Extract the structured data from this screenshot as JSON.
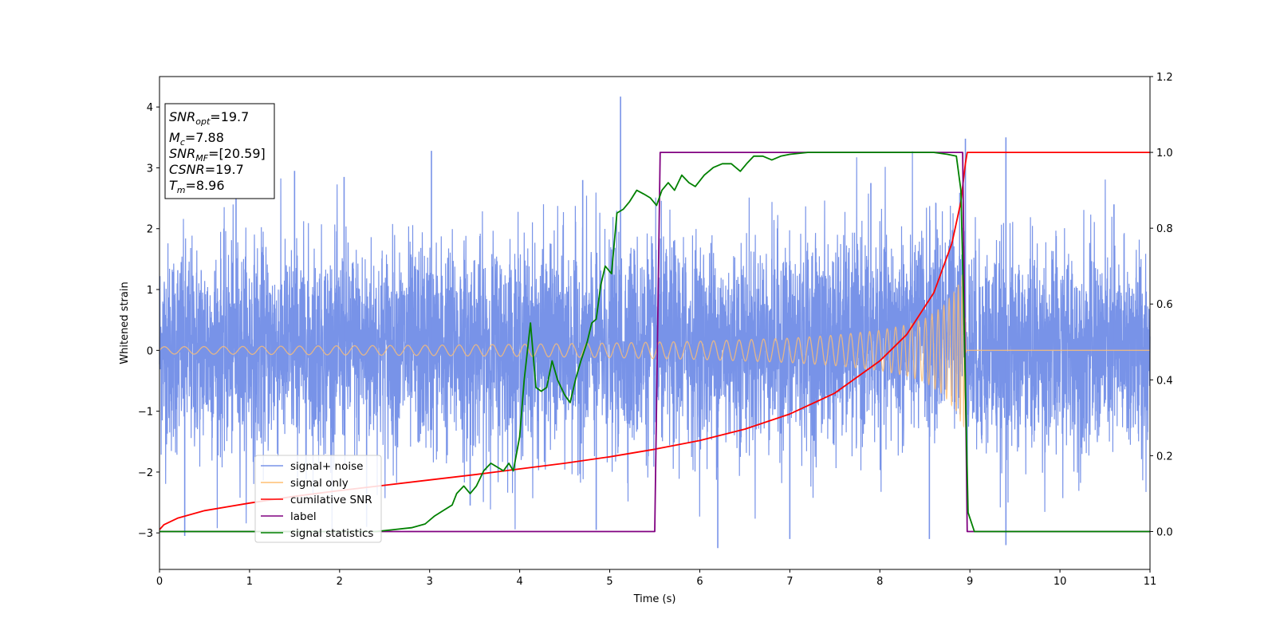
{
  "chart_data": {
    "type": "line",
    "xlabel": "Time (s)",
    "ylabel_left": "Whitened strain",
    "ylabel_right": "",
    "xlim": [
      0,
      11
    ],
    "ylim_left": [
      -3.6,
      4.5
    ],
    "ylim_right": [
      -0.1,
      1.2
    ],
    "x_ticks": [
      "0",
      "1",
      "2",
      "3",
      "4",
      "5",
      "6",
      "7",
      "8",
      "9",
      "10",
      "11"
    ],
    "y_ticks_left": [
      "−3",
      "−2",
      "−1",
      "0",
      "1",
      "2",
      "3",
      "4"
    ],
    "y_ticks_right": [
      "0.0",
      "0.2",
      "0.4",
      "0.6",
      "0.8",
      "1.0",
      "1.2"
    ],
    "grid": false,
    "legend_position": "lower-left",
    "info_box": {
      "snr_opt": {
        "name": "SNR",
        "sub": "opt",
        "value": "=19.7"
      },
      "mc": {
        "name": "M",
        "sub": "c",
        "value": "=7.88"
      },
      "snr_mf": {
        "name": "SNR",
        "sub": "MF",
        "value": "=[20.59]"
      },
      "csnr": {
        "name": "CSNR",
        "sub": "",
        "value": "=19.7"
      },
      "tm": {
        "name": "T",
        "sub": "m",
        "value": "=8.96"
      }
    },
    "series": [
      {
        "name": "signal+ noise",
        "color": "#7893e8",
        "axis": "left",
        "kind": "noise",
        "noise_std": 0.85,
        "noise_peaks": [
          [
            5.12,
            4.17
          ],
          [
            3.02,
            3.28
          ],
          [
            8.95,
            3.48
          ],
          [
            9.4,
            3.5
          ],
          [
            0.28,
            -3.05
          ],
          [
            6.2,
            -3.25
          ],
          [
            9.4,
            -3.2
          ],
          [
            8.55,
            -3.1
          ],
          [
            7.0,
            -3.1
          ],
          [
            4.85,
            -2.95
          ],
          [
            3.45,
            -2.55
          ],
          [
            1.5,
            2.95
          ],
          [
            2.3,
            -2.9
          ],
          [
            0.85,
            2.7
          ],
          [
            2.05,
            2.85
          ],
          [
            7.9,
            2.75
          ],
          [
            10.6,
            2.4
          ],
          [
            4.7,
            2.8
          ]
        ]
      },
      {
        "name": "signal only",
        "color": "#ffbf72",
        "axis": "left",
        "kind": "chirp",
        "envelope": [
          [
            0,
            0.06
          ],
          [
            1,
            0.065
          ],
          [
            2,
            0.075
          ],
          [
            3,
            0.085
          ],
          [
            4,
            0.1
          ],
          [
            5,
            0.12
          ],
          [
            6,
            0.15
          ],
          [
            7,
            0.2
          ],
          [
            7.5,
            0.25
          ],
          [
            8,
            0.33
          ],
          [
            8.3,
            0.42
          ],
          [
            8.5,
            0.52
          ],
          [
            8.7,
            0.72
          ],
          [
            8.85,
            1.0
          ],
          [
            8.93,
            1.3
          ],
          [
            8.96,
            0.0
          ],
          [
            11,
            0.0
          ]
        ]
      },
      {
        "name": "cumilative SNR",
        "color": "#ff0000",
        "axis": "right",
        "x": [
          0,
          0.05,
          0.2,
          0.5,
          1,
          1.5,
          2,
          2.5,
          3,
          3.5,
          4,
          4.5,
          5,
          5.5,
          6,
          6.5,
          7,
          7.5,
          8,
          8.3,
          8.6,
          8.8,
          8.9,
          8.95,
          8.97,
          11
        ],
        "y": [
          0.005,
          0.018,
          0.035,
          0.055,
          0.075,
          0.093,
          0.108,
          0.122,
          0.136,
          0.15,
          0.165,
          0.18,
          0.197,
          0.217,
          0.24,
          0.27,
          0.31,
          0.365,
          0.45,
          0.52,
          0.63,
          0.76,
          0.87,
          0.97,
          1.0,
          1.0
        ]
      },
      {
        "name": "label",
        "color": "#800080",
        "axis": "right",
        "x": [
          0,
          5.5,
          5.56,
          8.92,
          8.97,
          11
        ],
        "y": [
          0,
          0,
          1,
          1,
          0,
          0
        ]
      },
      {
        "name": "signal statistics",
        "color": "#008000",
        "axis": "right",
        "x": [
          0,
          2.4,
          2.6,
          2.8,
          2.95,
          3.05,
          3.15,
          3.25,
          3.3,
          3.38,
          3.45,
          3.52,
          3.6,
          3.68,
          3.75,
          3.82,
          3.88,
          3.93,
          4.0,
          4.05,
          4.12,
          4.18,
          4.24,
          4.3,
          4.36,
          4.42,
          4.5,
          4.56,
          4.62,
          4.68,
          4.75,
          4.8,
          4.85,
          4.9,
          4.95,
          5.02,
          5.08,
          5.15,
          5.22,
          5.3,
          5.38,
          5.45,
          5.52,
          5.58,
          5.65,
          5.72,
          5.8,
          5.88,
          5.95,
          6.05,
          6.15,
          6.25,
          6.35,
          6.45,
          6.52,
          6.6,
          6.7,
          6.8,
          6.9,
          7.0,
          7.2,
          7.4,
          7.6,
          7.8,
          8.0,
          8.3,
          8.6,
          8.75,
          8.85,
          8.9,
          8.93,
          8.98,
          9.05,
          11
        ],
        "y": [
          0,
          0,
          0.005,
          0.01,
          0.02,
          0.04,
          0.055,
          0.07,
          0.1,
          0.12,
          0.1,
          0.12,
          0.16,
          0.18,
          0.17,
          0.16,
          0.18,
          0.16,
          0.25,
          0.4,
          0.55,
          0.38,
          0.37,
          0.38,
          0.45,
          0.4,
          0.36,
          0.34,
          0.4,
          0.45,
          0.5,
          0.55,
          0.56,
          0.65,
          0.7,
          0.68,
          0.84,
          0.85,
          0.87,
          0.9,
          0.89,
          0.88,
          0.86,
          0.9,
          0.92,
          0.9,
          0.94,
          0.92,
          0.91,
          0.94,
          0.96,
          0.97,
          0.97,
          0.95,
          0.97,
          0.99,
          0.99,
          0.98,
          0.99,
          0.995,
          1.0,
          1.0,
          1.0,
          1.0,
          1.0,
          1.0,
          1.0,
          0.995,
          0.99,
          0.9,
          0.6,
          0.05,
          0.0,
          0.0
        ]
      }
    ]
  }
}
